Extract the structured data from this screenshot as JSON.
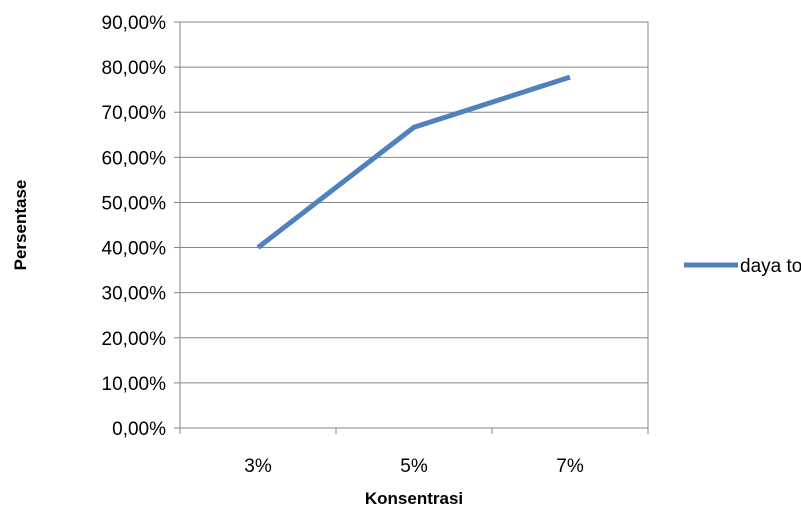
{
  "chart_data": {
    "type": "line",
    "categories": [
      "3%",
      "5%",
      "7%"
    ],
    "series": [
      {
        "name": "daya tolak",
        "values": [
          40.0,
          66.67,
          77.78
        ]
      }
    ],
    "xlabel": "Konsentrasi",
    "ylabel": "Persentase",
    "ylim": [
      0,
      90
    ],
    "yticks": [
      "0,00%",
      "10,00%",
      "20,00%",
      "30,00%",
      "40,00%",
      "50,00%",
      "60,00%",
      "70,00%",
      "80,00%",
      "90,00%"
    ],
    "grid": true,
    "legend_position": "right",
    "colors": {
      "series": "#4F81BD",
      "grid": "#868686",
      "axis": "#868686"
    }
  }
}
